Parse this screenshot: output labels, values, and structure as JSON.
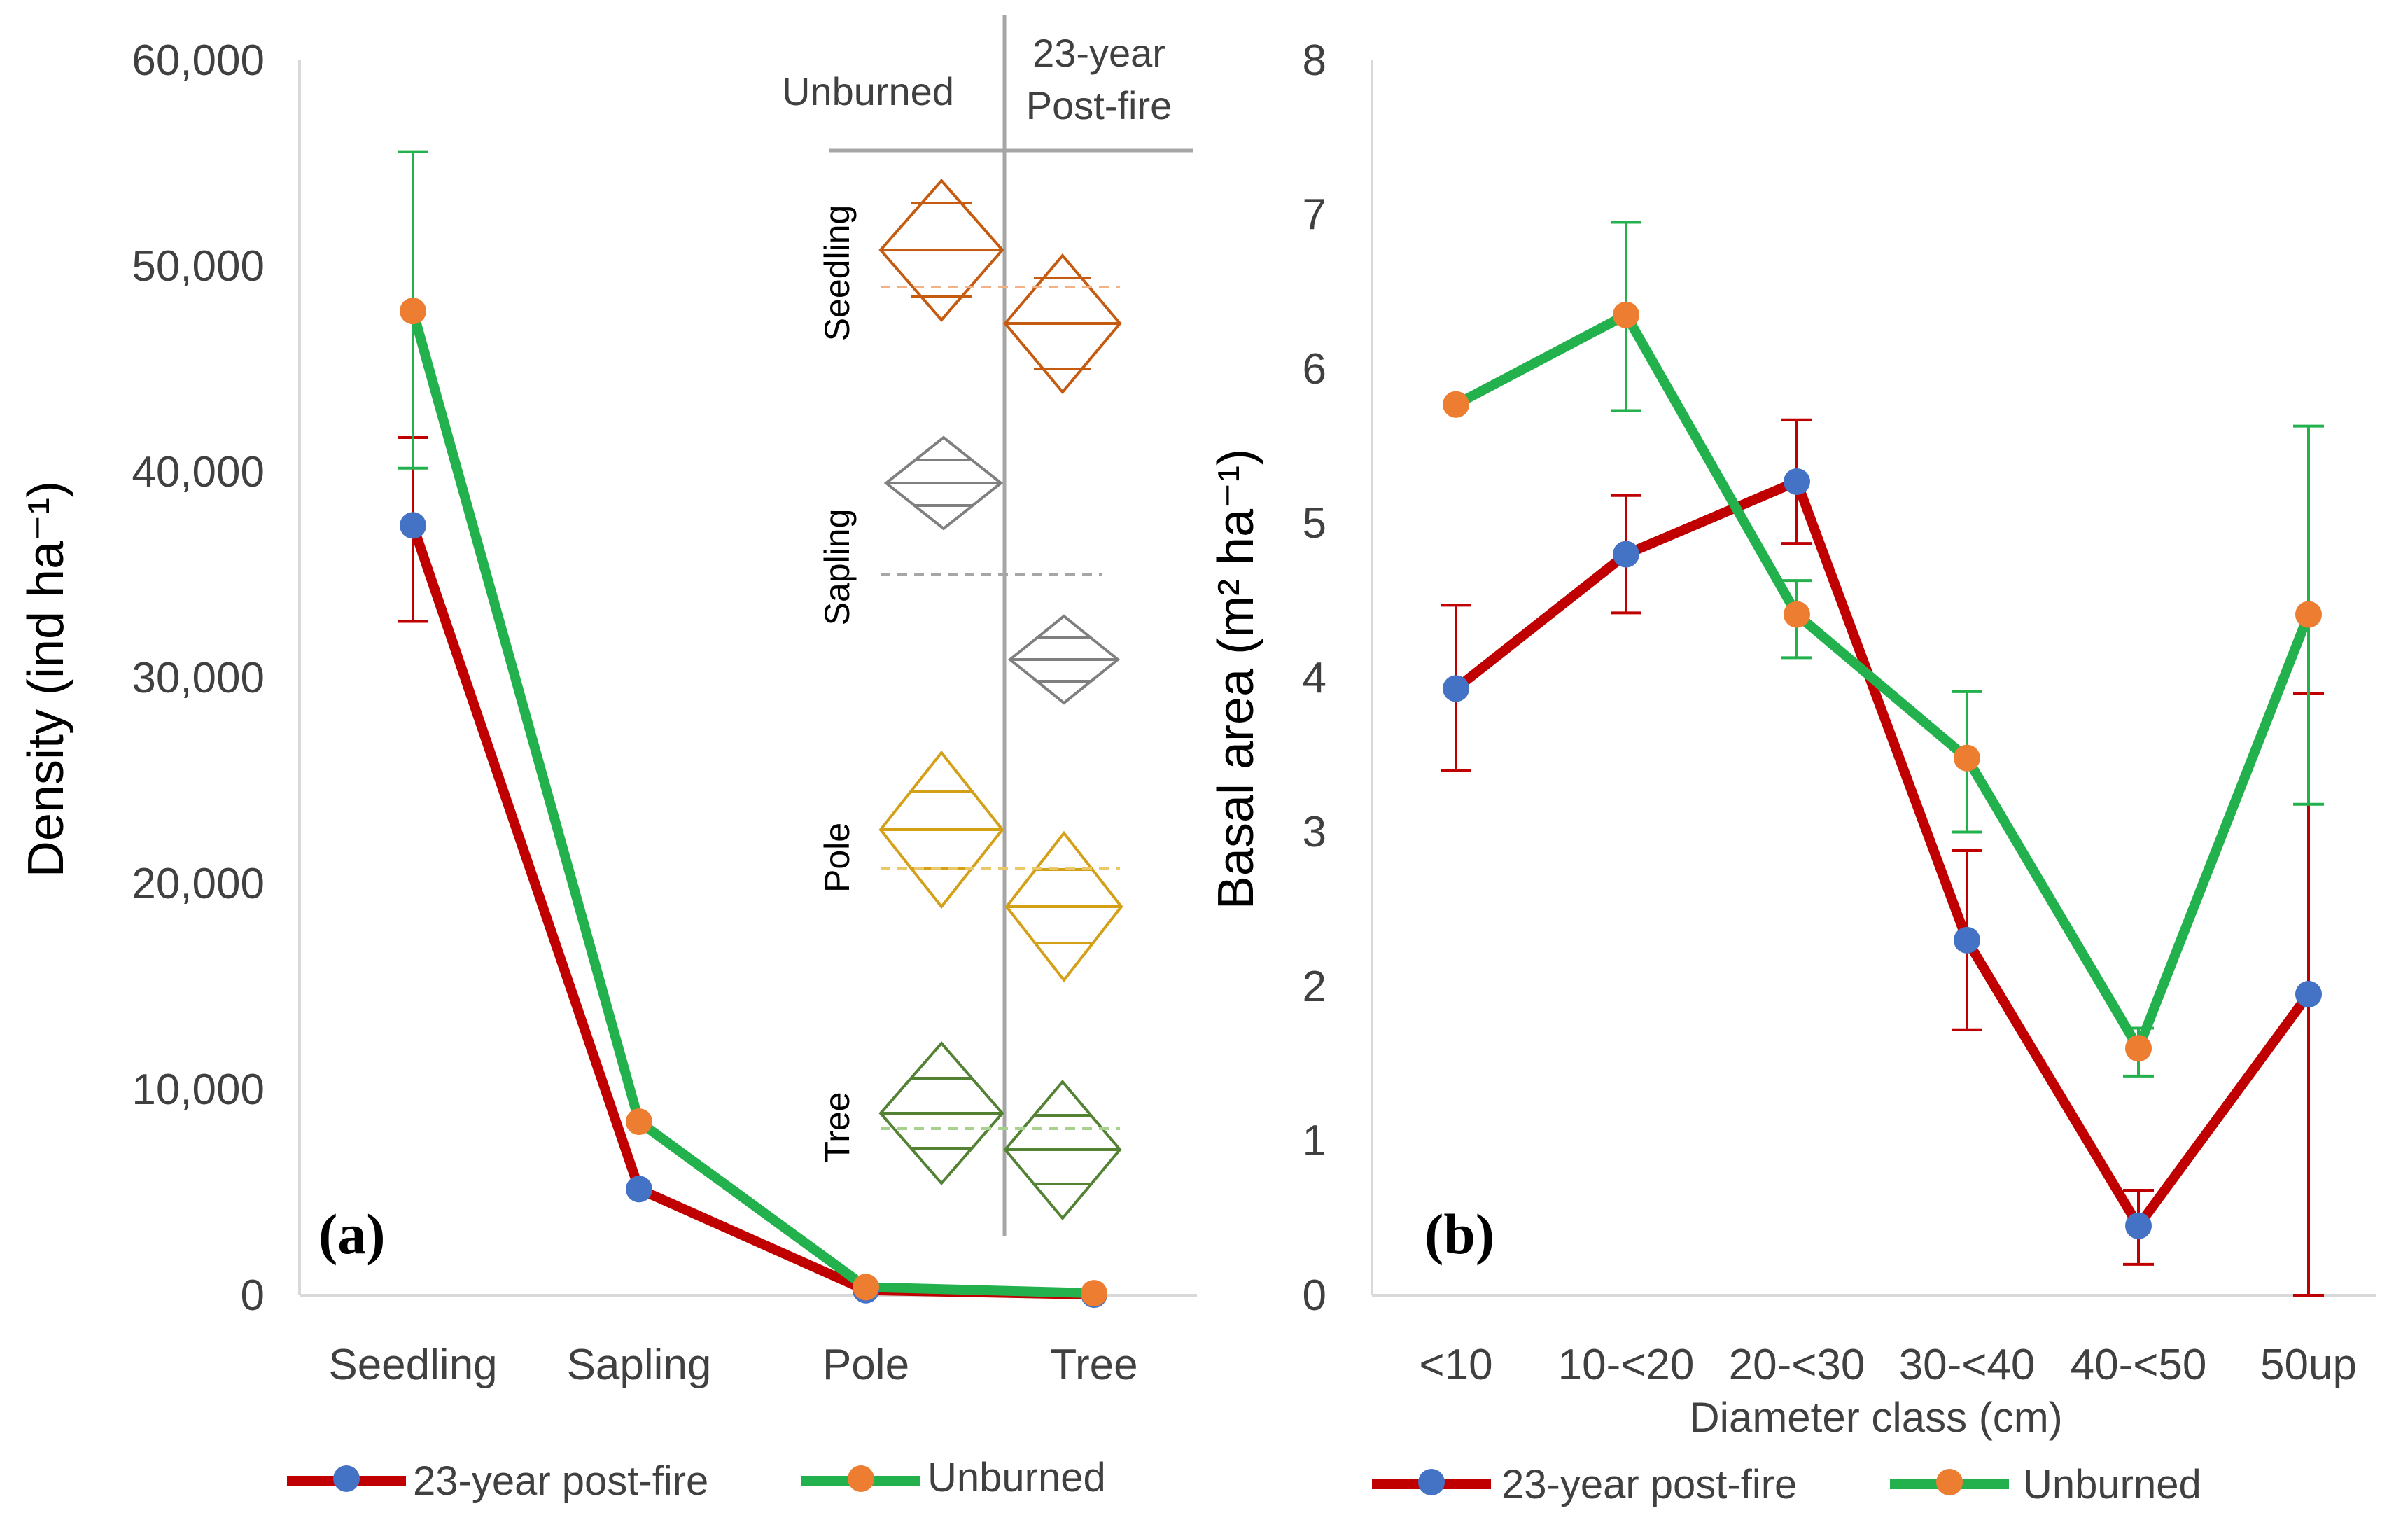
{
  "colors": {
    "postfire": "#C00000",
    "unburned": "#22B14C",
    "postfire_marker": "#4472C4",
    "unburned_marker": "#ED7D31",
    "seedling": "#C55A11",
    "sapling": "#7F7F7F",
    "pole": "#D4A017",
    "tree": "#548235"
  },
  "chart_data": [
    {
      "panel": "(a)",
      "type": "line",
      "ylabel": "Density (ind ha⁻¹)",
      "xlabel": "",
      "ylim": [
        0,
        60000
      ],
      "yticks": [
        "0",
        "10,000",
        "20,000",
        "30,000",
        "40,000",
        "50,000",
        "60,000"
      ],
      "categories": [
        "Seedling",
        "Sapling",
        "Pole",
        "Tree"
      ],
      "series": [
        {
          "name": "23-year post-fire",
          "values": [
            37700,
            5200,
            250,
            30
          ],
          "err_low": [
            33000,
            5200,
            250,
            30
          ],
          "err_high": [
            42000,
            5200,
            250,
            30
          ]
        },
        {
          "name": "Unburned",
          "values": [
            48200,
            8500,
            400,
            100
          ],
          "err_low": [
            40500,
            8500,
            400,
            100
          ],
          "err_high": [
            56000,
            8500,
            400,
            100
          ]
        }
      ],
      "legend": [
        "23-year post-fire",
        "Unburned"
      ],
      "inset": {
        "col_headers": [
          "Unburned",
          "23-year",
          "Post-fire"
        ],
        "rows": [
          "Seedling",
          "Sapling",
          "Pole",
          "Tree"
        ]
      }
    },
    {
      "panel": "(b)",
      "type": "line",
      "ylabel": "Basal area (m² ha⁻¹)",
      "xlabel": "Diameter class (cm)",
      "ylim": [
        0,
        8
      ],
      "yticks": [
        "0",
        "1",
        "2",
        "3",
        "4",
        "5",
        "6",
        "7",
        "8"
      ],
      "categories": [
        "<10",
        "10-<20",
        "20-<30",
        "30-<40",
        "40-<50",
        "50up"
      ],
      "series": [
        {
          "name": "23-year post-fire",
          "values": [
            3.93,
            4.8,
            5.27,
            2.3,
            0.45,
            1.95
          ],
          "err_low": [
            3.4,
            4.42,
            4.87,
            1.72,
            0.2,
            0.0
          ],
          "err_high": [
            4.47,
            5.18,
            5.67,
            2.88,
            0.68,
            3.9
          ]
        },
        {
          "name": "Unburned",
          "values": [
            5.77,
            6.35,
            4.41,
            3.48,
            1.6,
            4.41
          ],
          "err_low": [
            5.77,
            5.73,
            4.13,
            3.0,
            1.42,
            3.18
          ],
          "err_high": [
            5.77,
            6.95,
            4.63,
            3.91,
            1.73,
            5.63
          ]
        }
      ],
      "legend": [
        "23-year post-fire",
        "Unburned"
      ]
    }
  ]
}
